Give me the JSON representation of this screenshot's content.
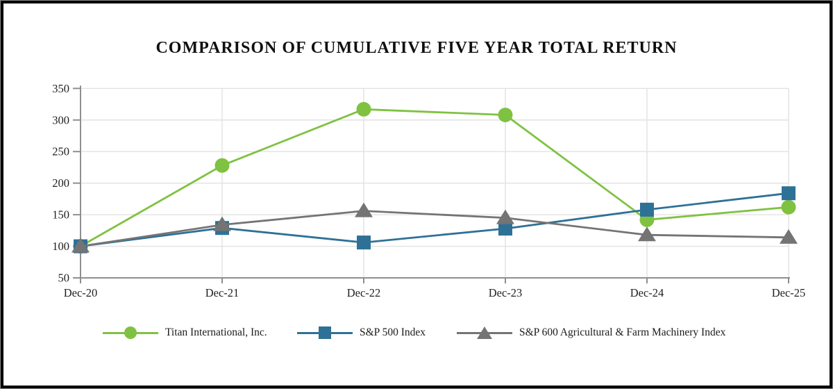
{
  "title": "COMPARISON OF CUMULATIVE FIVE YEAR TOTAL RETURN",
  "chart_data": {
    "type": "line",
    "title": "COMPARISON OF CUMULATIVE FIVE YEAR TOTAL RETURN",
    "categories": [
      "Dec-20",
      "Dec-21",
      "Dec-22",
      "Dec-23",
      "Dec-24",
      "Dec-25"
    ],
    "series": [
      {
        "name": "Titan International, Inc.",
        "marker": "circle",
        "color": "#7fc241",
        "values": [
          100,
          228,
          317,
          308,
          142,
          162
        ]
      },
      {
        "name": "S&P 500 Index",
        "marker": "square",
        "color": "#2e7196",
        "values": [
          100,
          129,
          106,
          128,
          158,
          184
        ]
      },
      {
        "name": "S&P 600 Agricultural & Farm Machinery Index",
        "marker": "triangle",
        "color": "#747474",
        "values": [
          100,
          134,
          156,
          145,
          118,
          114
        ]
      }
    ],
    "ylim": [
      50,
      350
    ],
    "yticks": [
      50,
      100,
      150,
      200,
      250,
      300,
      350
    ],
    "grid": true,
    "legend_position": "bottom",
    "axis_color": "#8f8f8f",
    "grid_color": "#e2e2e2",
    "text_color": "#1f1f1f"
  }
}
